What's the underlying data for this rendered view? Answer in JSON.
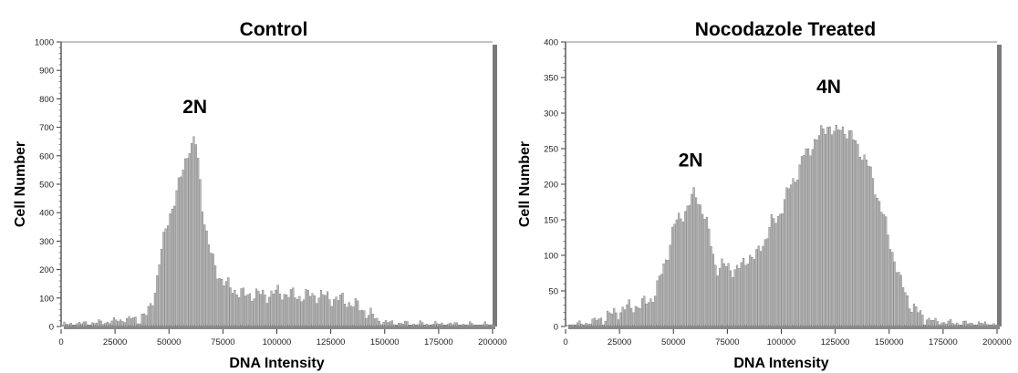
{
  "chart_data": [
    {
      "type": "bar",
      "title": "Control",
      "xlabel": "DNA Intensity",
      "ylabel": "Cell Number",
      "xlim": [
        0,
        200000
      ],
      "ylim": [
        0,
        1000
      ],
      "xticks": [
        0,
        25000,
        50000,
        75000,
        100000,
        125000,
        150000,
        175000,
        200000
      ],
      "yticks": [
        0,
        100,
        200,
        300,
        400,
        500,
        600,
        700,
        800,
        900,
        1000
      ],
      "bin_width": 1000,
      "x": [
        0,
        5000,
        10000,
        15000,
        20000,
        25000,
        30000,
        35000,
        40000,
        42000,
        44000,
        46000,
        48000,
        50000,
        52000,
        54000,
        56000,
        58000,
        60000,
        61000,
        62000,
        63000,
        64000,
        65000,
        66000,
        68000,
        70000,
        72000,
        74000,
        76000,
        78000,
        80000,
        85000,
        90000,
        95000,
        100000,
        105000,
        110000,
        115000,
        120000,
        125000,
        130000,
        135000,
        140000,
        142000,
        145000,
        148000,
        150000,
        155000,
        160000,
        170000,
        180000,
        190000,
        200000
      ],
      "values": [
        5,
        8,
        10,
        12,
        15,
        20,
        25,
        30,
        40,
        80,
        150,
        250,
        320,
        390,
        430,
        480,
        540,
        600,
        640,
        620,
        680,
        600,
        560,
        460,
        400,
        300,
        240,
        200,
        170,
        150,
        140,
        130,
        110,
        115,
        110,
        120,
        115,
        105,
        110,
        110,
        100,
        95,
        80,
        60,
        50,
        30,
        20,
        15,
        12,
        10,
        8,
        8,
        6,
        5
      ],
      "annotations": [
        {
          "text": "2N",
          "x": 62000,
          "y": 750
        }
      ]
    },
    {
      "type": "bar",
      "title": "Nocodazole Treated",
      "xlabel": "DNA Intensity",
      "ylabel": "Cell Number",
      "xlim": [
        0,
        200000
      ],
      "ylim": [
        0,
        400
      ],
      "xticks": [
        0,
        25000,
        50000,
        75000,
        100000,
        125000,
        150000,
        175000,
        200000
      ],
      "yticks": [
        0,
        50,
        100,
        150,
        200,
        250,
        300,
        350,
        400
      ],
      "bin_width": 1000,
      "x": [
        0,
        5000,
        10000,
        15000,
        20000,
        25000,
        30000,
        35000,
        40000,
        42000,
        45000,
        48000,
        50000,
        52000,
        55000,
        58000,
        60000,
        62000,
        65000,
        68000,
        70000,
        72000,
        75000,
        78000,
        80000,
        83000,
        85000,
        88000,
        90000,
        93000,
        95000,
        98000,
        100000,
        103000,
        105000,
        108000,
        110000,
        113000,
        115000,
        118000,
        120000,
        122000,
        125000,
        128000,
        130000,
        132000,
        135000,
        138000,
        140000,
        143000,
        145000,
        148000,
        150000,
        153000,
        155000,
        158000,
        160000,
        165000,
        170000,
        175000,
        180000,
        190000,
        200000
      ],
      "values": [
        2,
        3,
        5,
        10,
        15,
        22,
        28,
        30,
        40,
        50,
        80,
        110,
        140,
        150,
        160,
        175,
        190,
        175,
        150,
        110,
        80,
        85,
        85,
        80,
        80,
        90,
        100,
        95,
        110,
        125,
        145,
        150,
        165,
        190,
        200,
        220,
        240,
        245,
        260,
        270,
        275,
        285,
        270,
        280,
        275,
        270,
        255,
        240,
        230,
        200,
        180,
        150,
        120,
        90,
        65,
        45,
        30,
        15,
        8,
        6,
        5,
        4,
        3
      ],
      "annotations": [
        {
          "text": "2N",
          "x": 58000,
          "y": 225
        },
        {
          "text": "4N",
          "x": 122000,
          "y": 328
        }
      ]
    }
  ]
}
